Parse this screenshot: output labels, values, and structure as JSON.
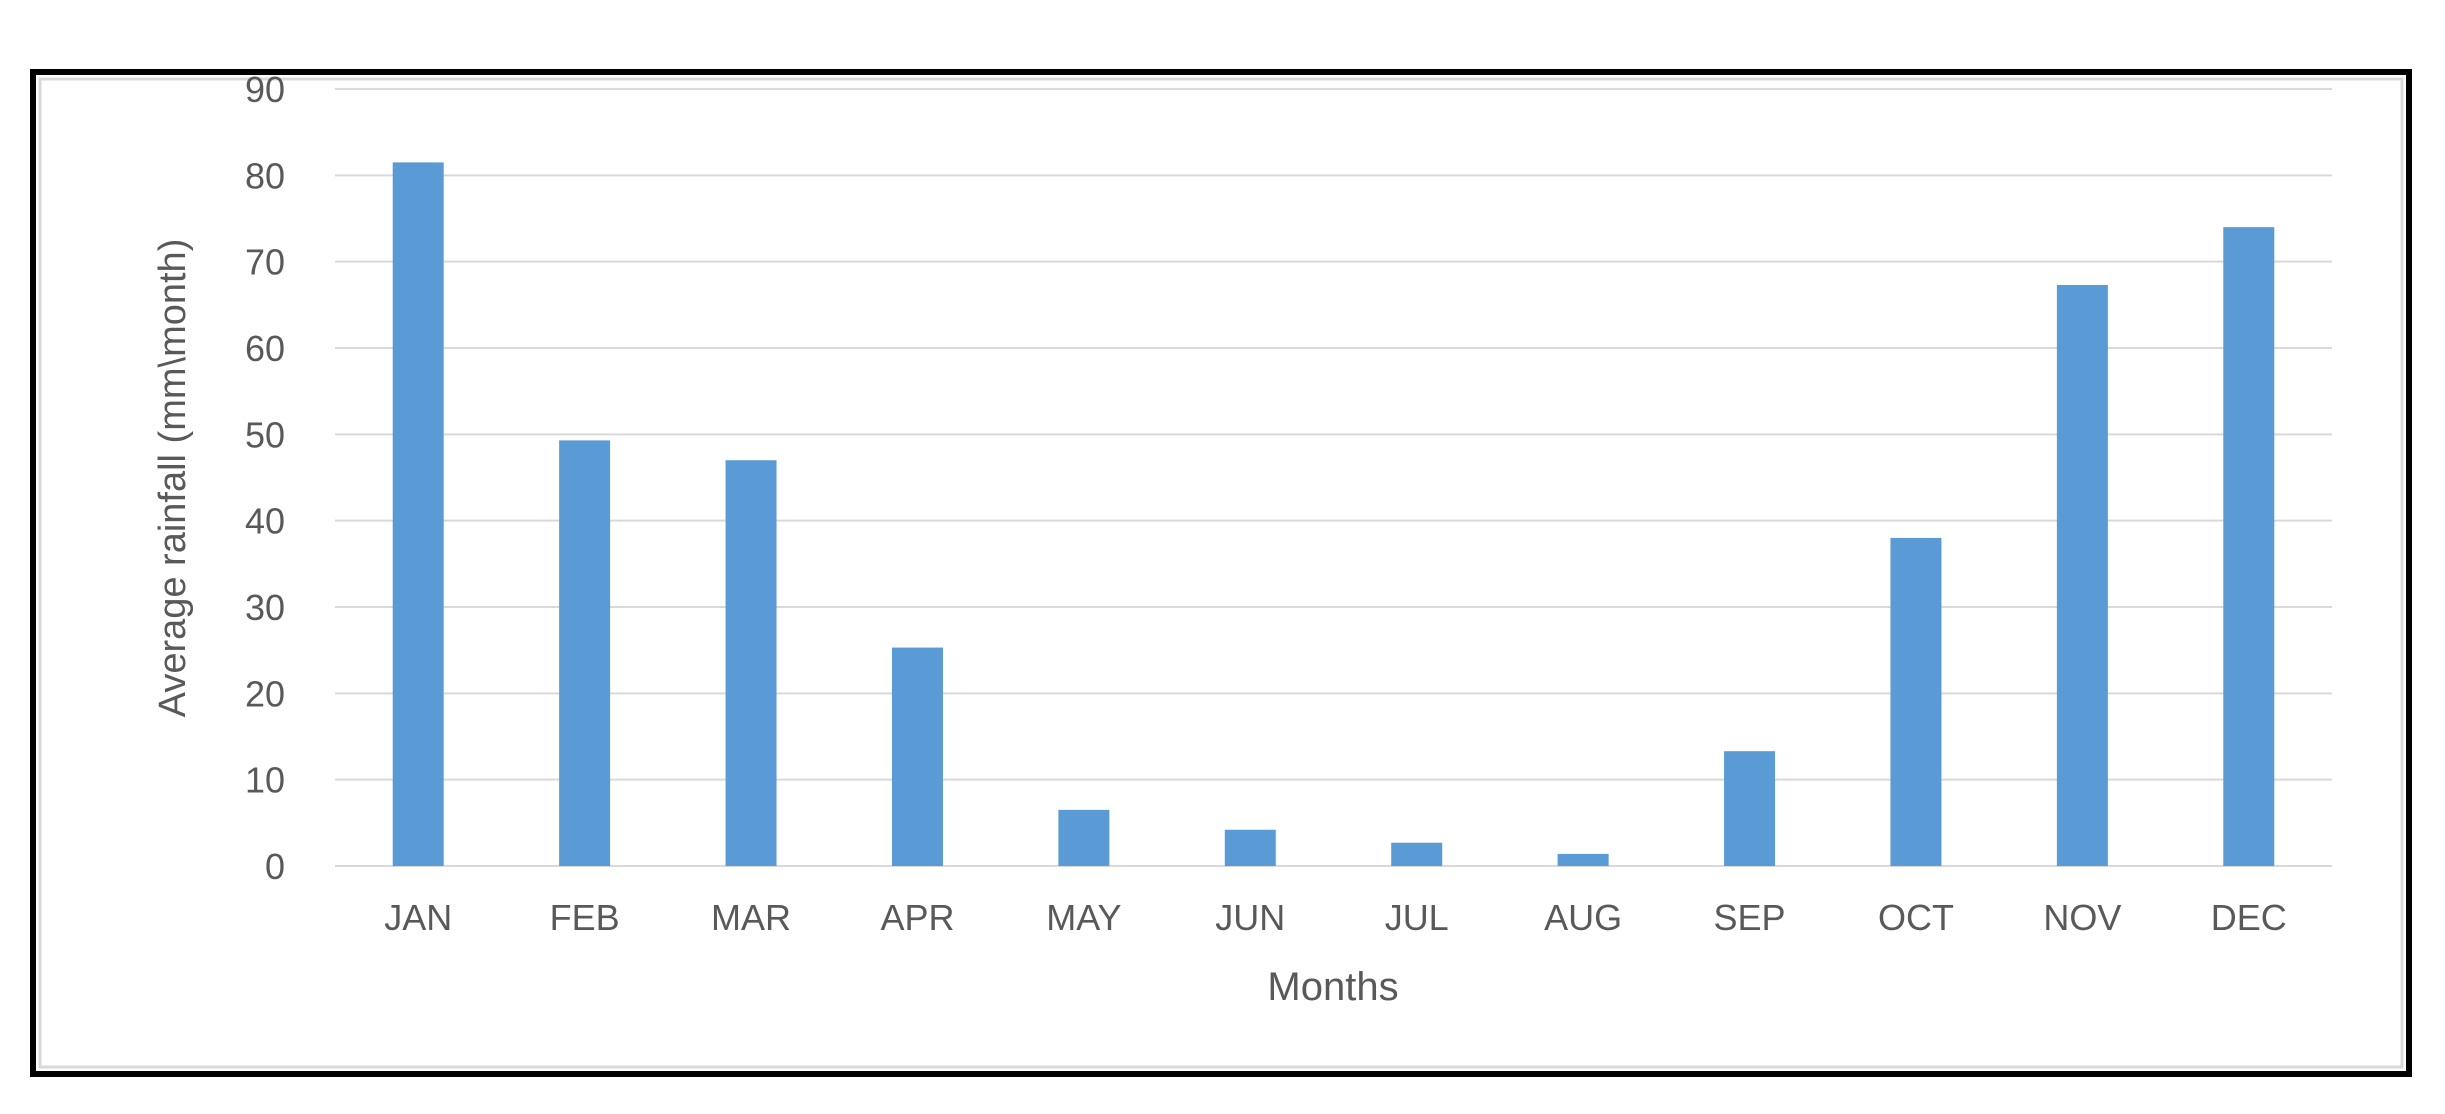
{
  "chart_data": {
    "type": "bar",
    "title": "",
    "xlabel": "Months",
    "ylabel": "Average rainfall (mm\\month)",
    "categories": [
      "JAN",
      "FEB",
      "MAR",
      "APR",
      "MAY",
      "JUN",
      "JUL",
      "AUG",
      "SEP",
      "OCT",
      "NOV",
      "DEC"
    ],
    "values": [
      81.5,
      49.3,
      47.0,
      25.3,
      6.5,
      4.2,
      2.7,
      1.4,
      13.3,
      38.0,
      67.3,
      74.0
    ],
    "ylim": [
      0,
      90
    ],
    "yticks": [
      0,
      10,
      20,
      30,
      40,
      50,
      60,
      70,
      80,
      90
    ],
    "grid": true,
    "legend": "none",
    "colors": {
      "bar": "#5B9BD5",
      "grid": "#D9D9D9",
      "text": "#595959",
      "frame": "#000000"
    }
  }
}
